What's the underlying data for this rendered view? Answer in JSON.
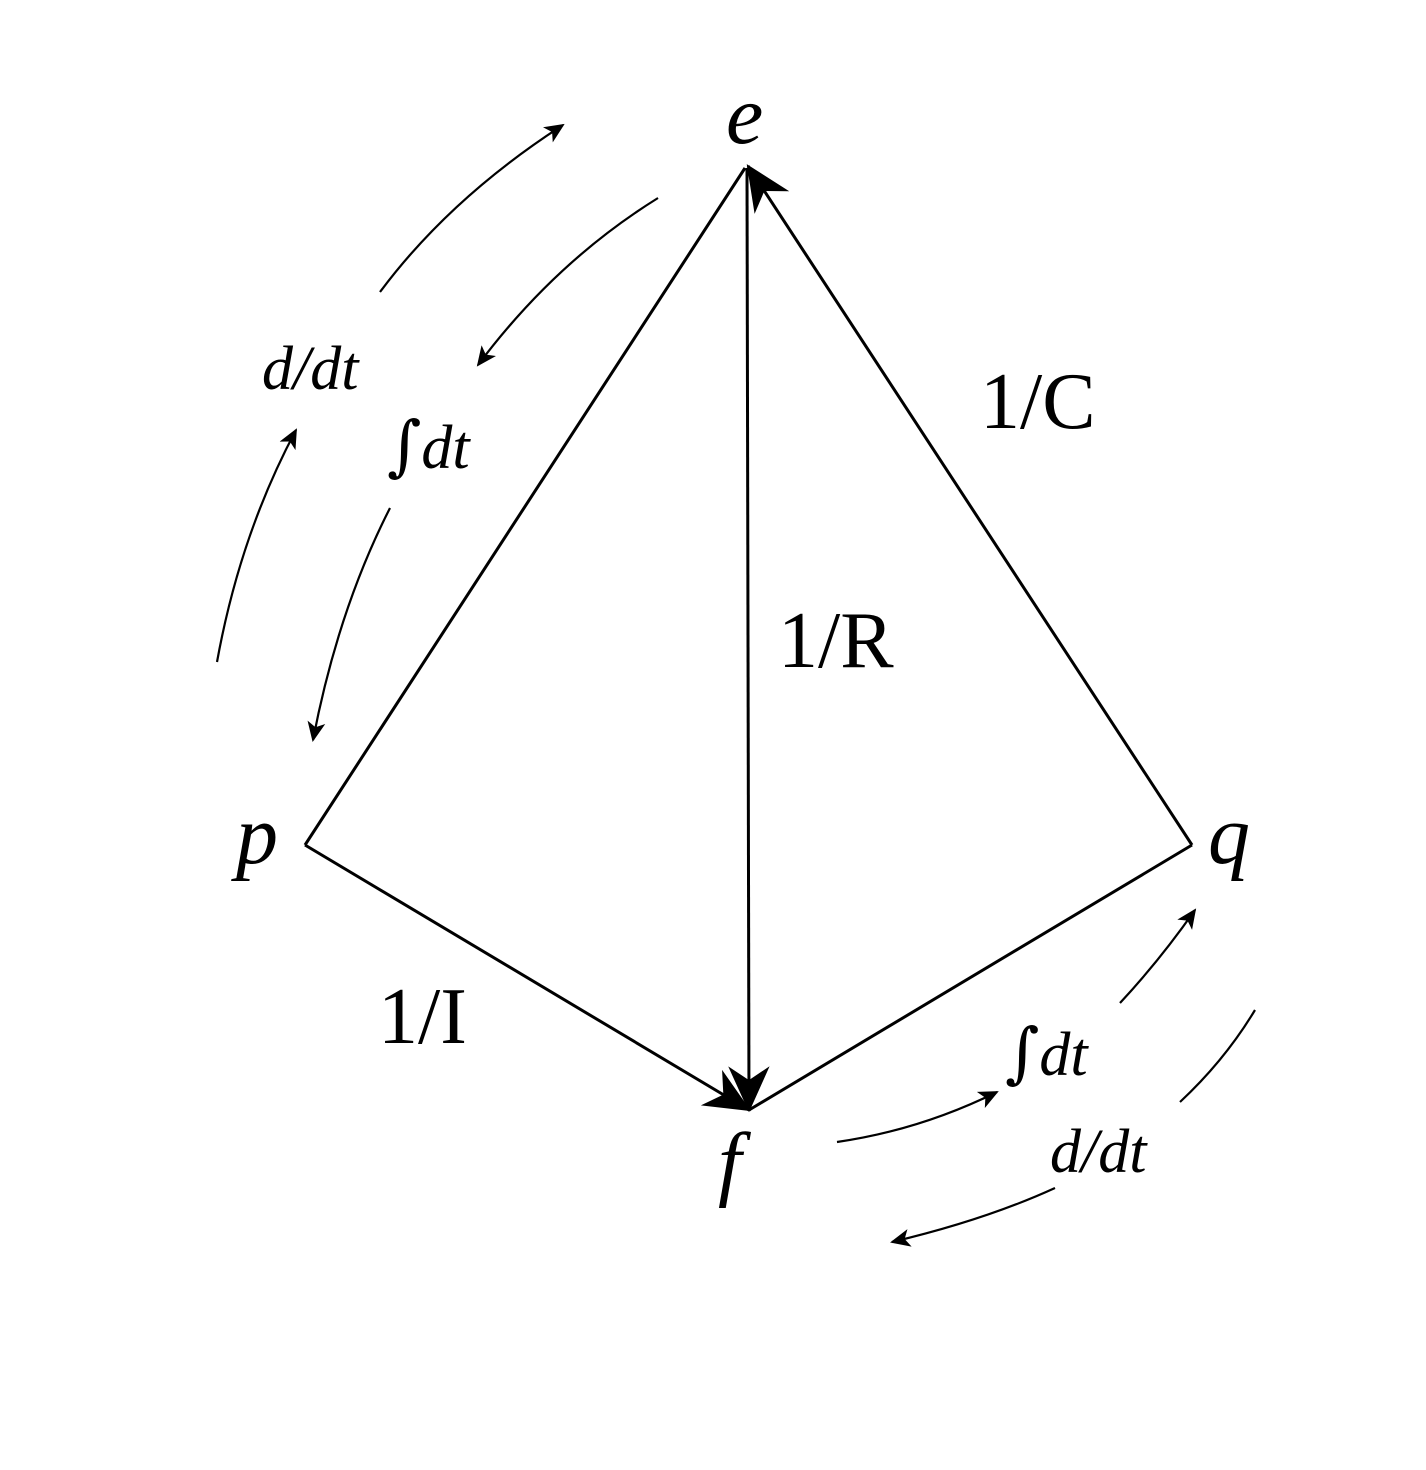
{
  "nodes": {
    "e": "e",
    "f": "f",
    "p": "p",
    "q": "q"
  },
  "edges": {
    "resistance": "1/R",
    "capacitance": "1/C",
    "inductance": "1/I"
  },
  "operators": {
    "derivative_left": "d/dt",
    "integral_left_symbol": "∫",
    "integral_left_var": "dt",
    "integral_right_symbol": "∫",
    "integral_right_var": "dt",
    "derivative_right": "d/dt"
  },
  "colors": {
    "ink": "#000000",
    "background": "#ffffff"
  }
}
